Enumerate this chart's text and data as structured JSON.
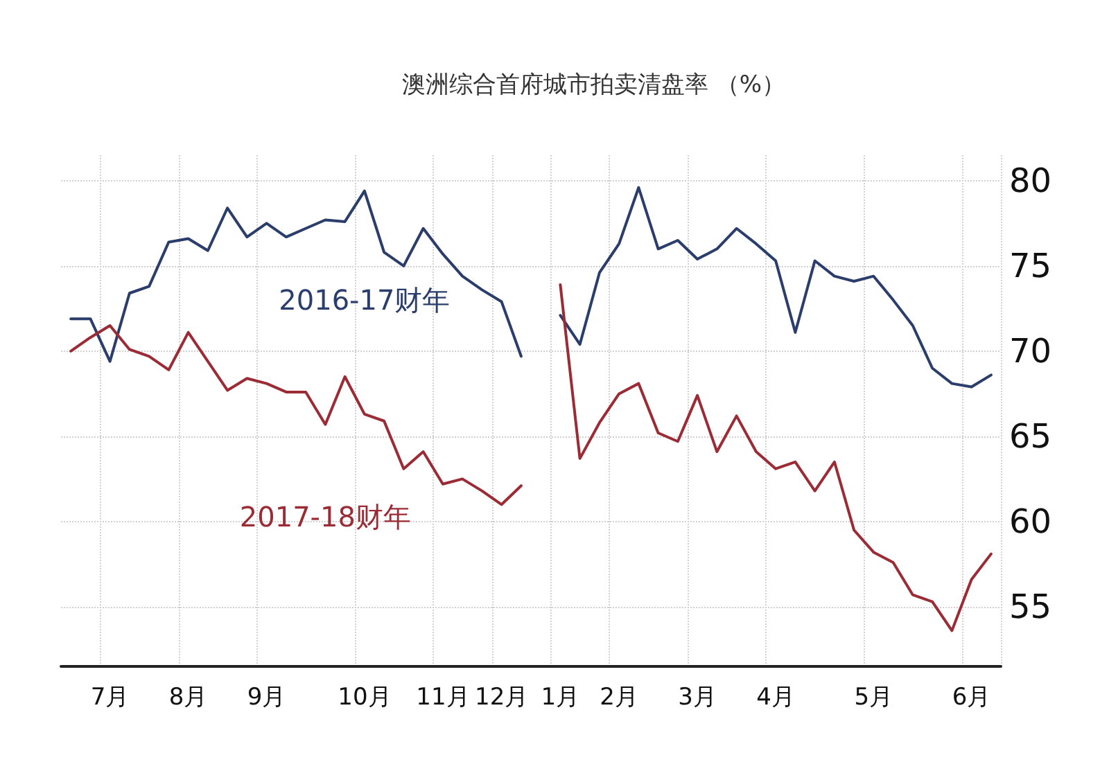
{
  "chart_data": {
    "type": "line",
    "title": "澳洲综合首府城市拍卖清盘率 （%）",
    "categories": [
      null,
      null,
      "7月",
      null,
      null,
      null,
      "8月",
      null,
      null,
      null,
      "9月",
      null,
      null,
      null,
      null,
      "10月",
      null,
      null,
      null,
      "11月",
      null,
      null,
      "12月",
      null,
      null,
      "1月",
      null,
      null,
      "2月",
      null,
      null,
      null,
      "3月",
      null,
      null,
      null,
      "4月",
      null,
      null,
      null,
      null,
      "5月",
      null,
      null,
      null,
      null,
      "6月",
      null
    ],
    "series": [
      {
        "name": "2016-17财年",
        "color": "#2b3d6b",
        "values": [
          71.9,
          71.9,
          69.4,
          73.4,
          73.8,
          76.4,
          76.6,
          75.9,
          78.4,
          76.7,
          77.5,
          76.7,
          77.2,
          77.7,
          77.6,
          79.4,
          75.8,
          75.0,
          77.2,
          75.7,
          74.4,
          73.6,
          72.9,
          69.7,
          null,
          72.1,
          70.4,
          74.6,
          76.3,
          79.6,
          76.0,
          76.5,
          75.4,
          76.0,
          77.2,
          76.3,
          75.3,
          71.1,
          75.3,
          74.4,
          74.1,
          74.4,
          73.0,
          71.5,
          69.0,
          68.1,
          67.9,
          68.6
        ]
      },
      {
        "name": "2017-18财年",
        "color": "#9b2c36",
        "values": [
          70.0,
          70.8,
          71.5,
          70.1,
          69.7,
          68.9,
          71.1,
          69.4,
          67.7,
          68.4,
          68.1,
          67.6,
          67.6,
          65.7,
          68.5,
          66.3,
          65.9,
          63.1,
          64.1,
          62.2,
          62.5,
          61.8,
          61.0,
          62.1,
          null,
          73.9,
          63.7,
          65.8,
          67.5,
          68.1,
          65.2,
          64.7,
          67.4,
          64.1,
          66.2,
          64.1,
          63.1,
          63.5,
          61.8,
          63.5,
          59.5,
          58.2,
          57.6,
          55.7,
          55.3,
          53.6,
          56.6,
          58.1
        ]
      }
    ],
    "ylim": [
      51.5,
      81.5
    ],
    "yticks": [
      55,
      60,
      65,
      70,
      75,
      80
    ],
    "grid": true,
    "legend": false,
    "marker": "none",
    "line_style": "solid"
  }
}
